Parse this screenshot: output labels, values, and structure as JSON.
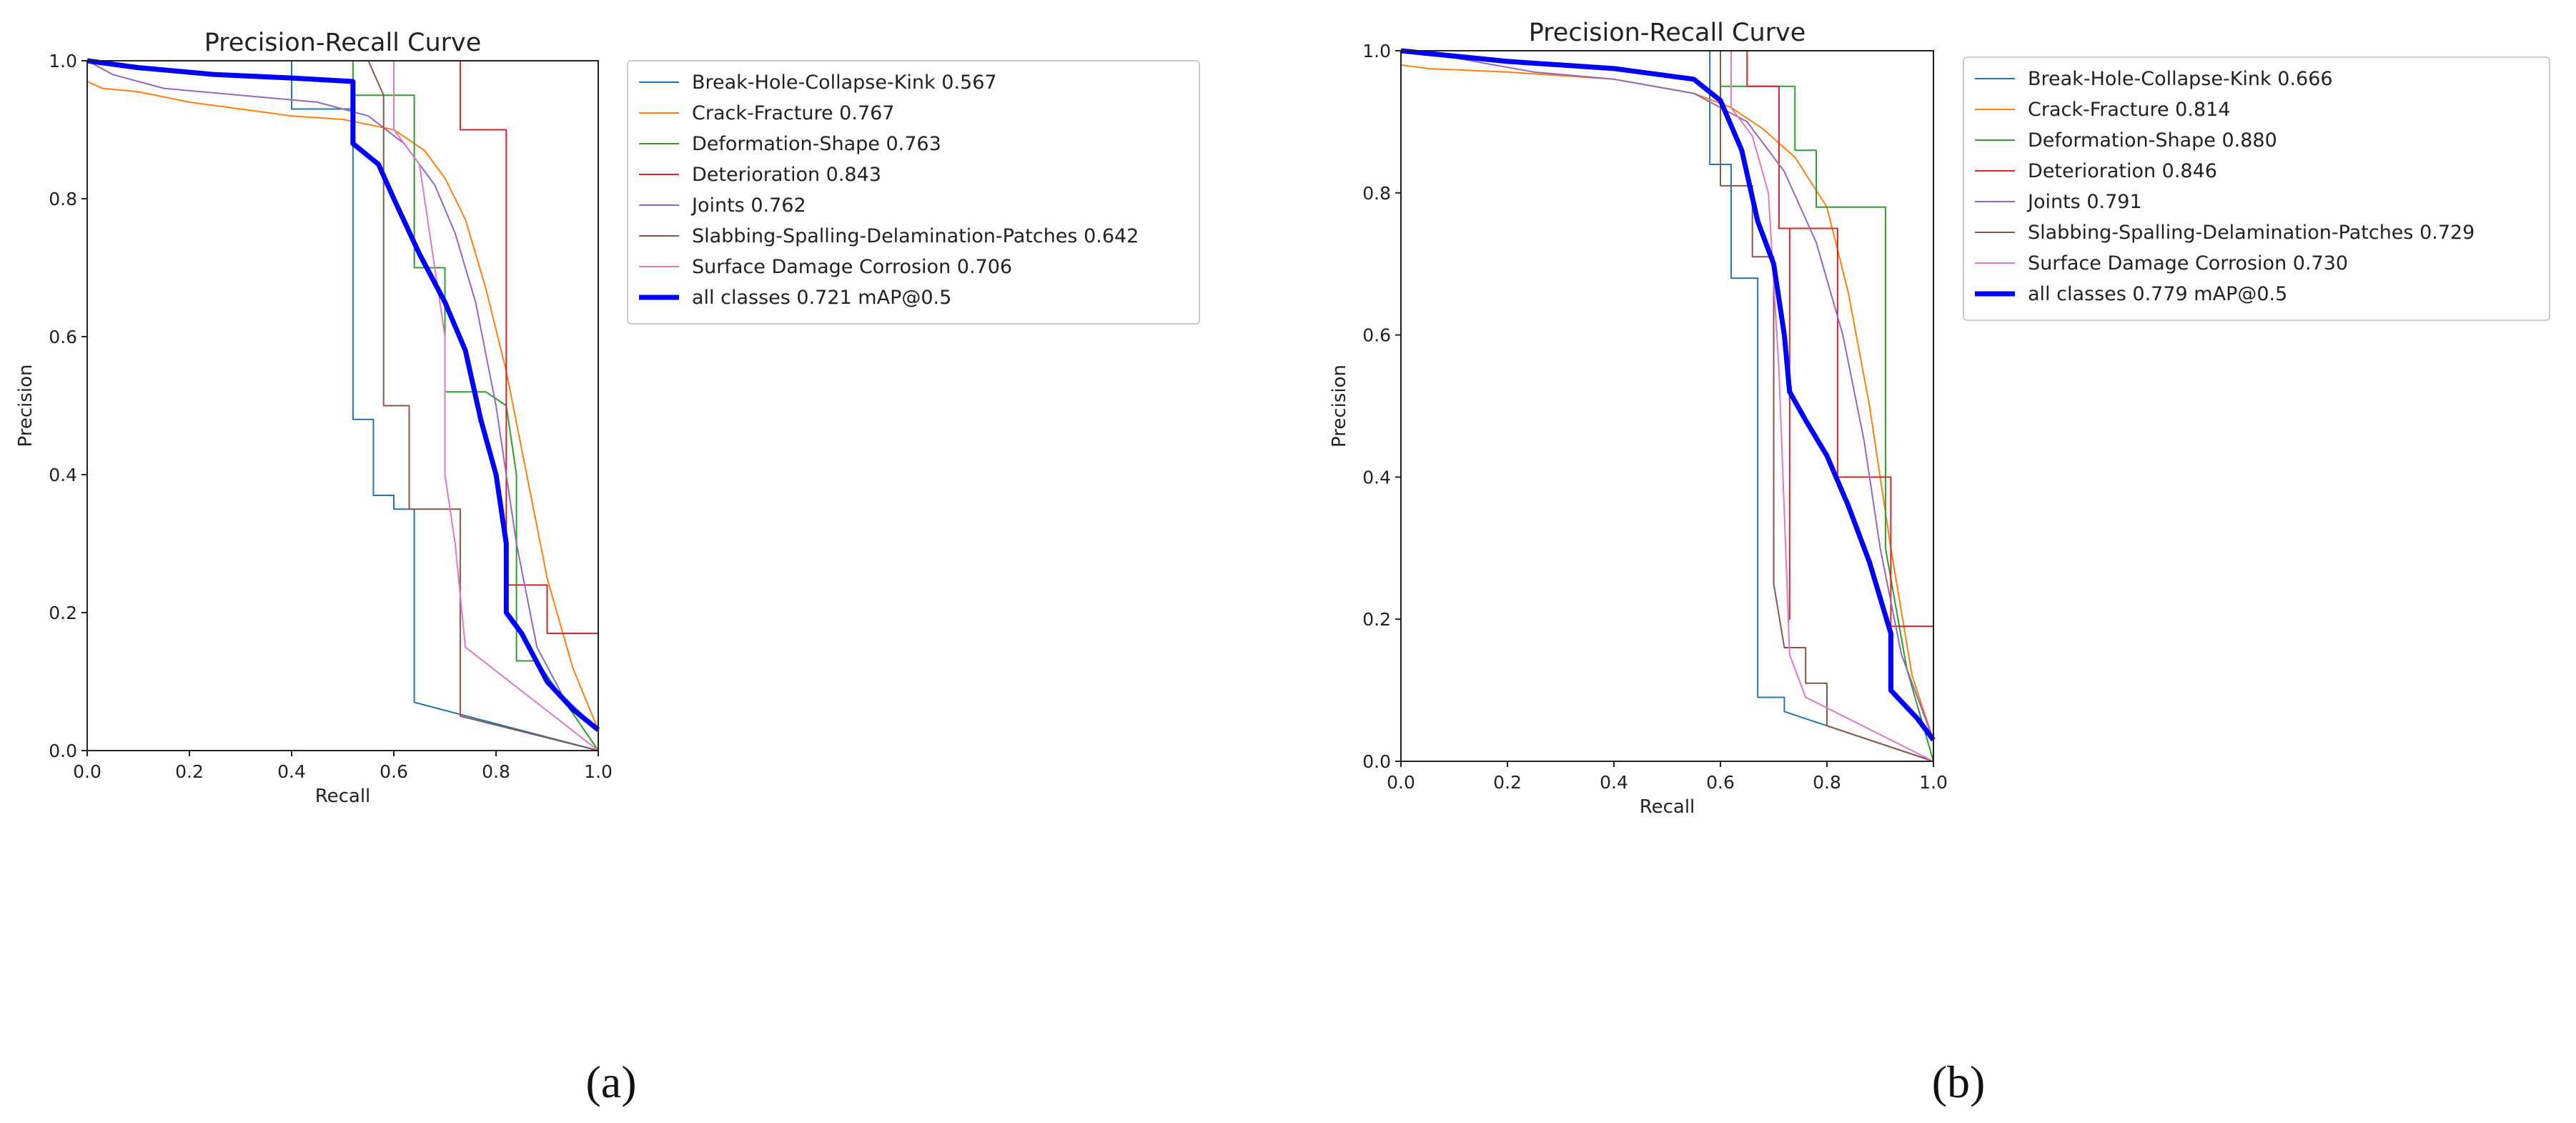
{
  "chart_data": [
    {
      "id": "a",
      "type": "line",
      "title": "Precision-Recall Curve",
      "xlabel": "Recall",
      "ylabel": "Precision",
      "xlim": [
        0,
        1
      ],
      "ylim": [
        0,
        1
      ],
      "xticks": [
        "0.0",
        "0.2",
        "0.4",
        "0.6",
        "0.8",
        "1.0"
      ],
      "yticks": [
        "0.0",
        "0.2",
        "0.4",
        "0.6",
        "0.8",
        "1.0"
      ],
      "legend_position": "outside-right",
      "caption": "(a)",
      "series": [
        {
          "name": "Break-Hole-Collapse-Kink 0.567",
          "color": "#1f77b4",
          "width": 2,
          "points": [
            [
              0,
              1
            ],
            [
              0.4,
              1
            ],
            [
              0.4,
              0.93
            ],
            [
              0.52,
              0.93
            ],
            [
              0.52,
              0.48
            ],
            [
              0.56,
              0.48
            ],
            [
              0.56,
              0.37
            ],
            [
              0.6,
              0.37
            ],
            [
              0.6,
              0.35
            ],
            [
              0.64,
              0.35
            ],
            [
              0.64,
              0.07
            ],
            [
              1,
              0
            ]
          ]
        },
        {
          "name": "Crack-Fracture 0.767",
          "color": "#ff7f0e",
          "width": 2,
          "points": [
            [
              0,
              0.97
            ],
            [
              0.03,
              0.96
            ],
            [
              0.1,
              0.955
            ],
            [
              0.2,
              0.94
            ],
            [
              0.3,
              0.93
            ],
            [
              0.4,
              0.92
            ],
            [
              0.5,
              0.915
            ],
            [
              0.6,
              0.9
            ],
            [
              0.66,
              0.87
            ],
            [
              0.7,
              0.83
            ],
            [
              0.74,
              0.77
            ],
            [
              0.78,
              0.67
            ],
            [
              0.82,
              0.55
            ],
            [
              0.86,
              0.4
            ],
            [
              0.9,
              0.25
            ],
            [
              0.95,
              0.12
            ],
            [
              1,
              0.03
            ]
          ]
        },
        {
          "name": "Deformation-Shape 0.763",
          "color": "#2ca02c",
          "width": 2,
          "points": [
            [
              0,
              1
            ],
            [
              0.52,
              1
            ],
            [
              0.52,
              0.95
            ],
            [
              0.64,
              0.95
            ],
            [
              0.64,
              0.7
            ],
            [
              0.7,
              0.7
            ],
            [
              0.7,
              0.52
            ],
            [
              0.78,
              0.52
            ],
            [
              0.82,
              0.5
            ],
            [
              0.84,
              0.4
            ],
            [
              0.84,
              0.13
            ],
            [
              0.88,
              0.13
            ],
            [
              1,
              0
            ]
          ]
        },
        {
          "name": "Deterioration 0.843",
          "color": "#d62728",
          "width": 2,
          "points": [
            [
              0,
              1
            ],
            [
              0.73,
              1
            ],
            [
              0.73,
              0.9
            ],
            [
              0.82,
              0.9
            ],
            [
              0.82,
              0.24
            ],
            [
              0.9,
              0.24
            ],
            [
              0.9,
              0.17
            ],
            [
              1,
              0.17
            ],
            [
              1,
              0
            ]
          ]
        },
        {
          "name": "Joints 0.762",
          "color": "#9467bd",
          "width": 2,
          "points": [
            [
              0,
              1
            ],
            [
              0.05,
              0.98
            ],
            [
              0.15,
              0.96
            ],
            [
              0.3,
              0.95
            ],
            [
              0.45,
              0.94
            ],
            [
              0.55,
              0.92
            ],
            [
              0.62,
              0.88
            ],
            [
              0.68,
              0.82
            ],
            [
              0.72,
              0.75
            ],
            [
              0.76,
              0.65
            ],
            [
              0.8,
              0.5
            ],
            [
              0.84,
              0.3
            ],
            [
              0.88,
              0.15
            ],
            [
              0.93,
              0.08
            ],
            [
              1,
              0.03
            ]
          ]
        },
        {
          "name": "Slabbing-Spalling-Delamination-Patches 0.642",
          "color": "#8c564b",
          "width": 2,
          "points": [
            [
              0,
              1
            ],
            [
              0.55,
              1
            ],
            [
              0.58,
              0.95
            ],
            [
              0.58,
              0.5
            ],
            [
              0.63,
              0.5
            ],
            [
              0.63,
              0.35
            ],
            [
              0.73,
              0.35
            ],
            [
              0.73,
              0.05
            ],
            [
              1,
              0
            ]
          ]
        },
        {
          "name": "Surface Damage Corrosion 0.706",
          "color": "#e377c2",
          "width": 2,
          "points": [
            [
              0,
              1
            ],
            [
              0.6,
              1
            ],
            [
              0.6,
              0.9
            ],
            [
              0.65,
              0.85
            ],
            [
              0.68,
              0.7
            ],
            [
              0.7,
              0.6
            ],
            [
              0.7,
              0.4
            ],
            [
              0.72,
              0.3
            ],
            [
              0.74,
              0.15
            ],
            [
              1,
              0
            ]
          ]
        },
        {
          "name": "all classes 0.721 mAP@0.5",
          "color": "#0000ff",
          "width": 7,
          "points": [
            [
              0,
              1
            ],
            [
              0.1,
              0.99
            ],
            [
              0.25,
              0.98
            ],
            [
              0.4,
              0.975
            ],
            [
              0.52,
              0.97
            ],
            [
              0.52,
              0.88
            ],
            [
              0.57,
              0.85
            ],
            [
              0.6,
              0.8
            ],
            [
              0.65,
              0.72
            ],
            [
              0.7,
              0.65
            ],
            [
              0.74,
              0.58
            ],
            [
              0.77,
              0.48
            ],
            [
              0.8,
              0.4
            ],
            [
              0.82,
              0.3
            ],
            [
              0.82,
              0.2
            ],
            [
              0.85,
              0.17
            ],
            [
              0.9,
              0.1
            ],
            [
              0.95,
              0.06
            ],
            [
              1,
              0.03
            ]
          ]
        }
      ]
    },
    {
      "id": "b",
      "type": "line",
      "title": "Precision-Recall Curve",
      "xlabel": "Recall",
      "ylabel": "Precision",
      "xlim": [
        0,
        1
      ],
      "ylim": [
        0,
        1
      ],
      "xticks": [
        "0.0",
        "0.2",
        "0.4",
        "0.6",
        "0.8",
        "1.0"
      ],
      "yticks": [
        "0.0",
        "0.2",
        "0.4",
        "0.6",
        "0.8",
        "1.0"
      ],
      "legend_position": "outside-right",
      "caption": "(b)",
      "series": [
        {
          "name": "Break-Hole-Collapse-Kink 0.666",
          "color": "#1f77b4",
          "width": 2,
          "points": [
            [
              0,
              1
            ],
            [
              0.58,
              1
            ],
            [
              0.58,
              0.84
            ],
            [
              0.62,
              0.84
            ],
            [
              0.62,
              0.68
            ],
            [
              0.67,
              0.68
            ],
            [
              0.67,
              0.09
            ],
            [
              0.72,
              0.09
            ],
            [
              0.72,
              0.07
            ],
            [
              1,
              0
            ]
          ]
        },
        {
          "name": "Crack-Fracture 0.814",
          "color": "#ff7f0e",
          "width": 2,
          "points": [
            [
              0,
              0.98
            ],
            [
              0.05,
              0.975
            ],
            [
              0.2,
              0.97
            ],
            [
              0.4,
              0.96
            ],
            [
              0.55,
              0.94
            ],
            [
              0.62,
              0.92
            ],
            [
              0.68,
              0.89
            ],
            [
              0.74,
              0.85
            ],
            [
              0.8,
              0.78
            ],
            [
              0.84,
              0.66
            ],
            [
              0.88,
              0.5
            ],
            [
              0.92,
              0.3
            ],
            [
              0.96,
              0.12
            ],
            [
              1,
              0.03
            ]
          ]
        },
        {
          "name": "Deformation-Shape 0.880",
          "color": "#2ca02c",
          "width": 2,
          "points": [
            [
              0,
              1
            ],
            [
              0.6,
              1
            ],
            [
              0.6,
              0.95
            ],
            [
              0.74,
              0.95
            ],
            [
              0.74,
              0.86
            ],
            [
              0.78,
              0.86
            ],
            [
              0.78,
              0.78
            ],
            [
              0.91,
              0.78
            ],
            [
              0.91,
              0.3
            ],
            [
              0.95,
              0.13
            ],
            [
              1,
              0
            ]
          ]
        },
        {
          "name": "Deterioration 0.846",
          "color": "#d62728",
          "width": 2,
          "points": [
            [
              0,
              1
            ],
            [
              0.65,
              1
            ],
            [
              0.65,
              0.95
            ],
            [
              0.71,
              0.95
            ],
            [
              0.71,
              0.75
            ],
            [
              0.73,
              0.75
            ],
            [
              0.73,
              0.2
            ],
            [
              0.73,
              0.75
            ],
            [
              0.82,
              0.75
            ],
            [
              0.82,
              0.4
            ],
            [
              0.92,
              0.4
            ],
            [
              0.92,
              0.19
            ],
            [
              1,
              0.19
            ],
            [
              1,
              0
            ]
          ]
        },
        {
          "name": "Joints 0.791",
          "color": "#9467bd",
          "width": 2,
          "points": [
            [
              0,
              1
            ],
            [
              0.1,
              0.99
            ],
            [
              0.25,
              0.97
            ],
            [
              0.4,
              0.96
            ],
            [
              0.55,
              0.94
            ],
            [
              0.65,
              0.9
            ],
            [
              0.72,
              0.83
            ],
            [
              0.78,
              0.73
            ],
            [
              0.83,
              0.6
            ],
            [
              0.87,
              0.45
            ],
            [
              0.9,
              0.3
            ],
            [
              0.94,
              0.15
            ],
            [
              1,
              0.03
            ]
          ]
        },
        {
          "name": "Slabbing-Spalling-Delamination-Patches 0.729",
          "color": "#8c564b",
          "width": 2,
          "points": [
            [
              0,
              1
            ],
            [
              0.6,
              1
            ],
            [
              0.6,
              0.81
            ],
            [
              0.66,
              0.81
            ],
            [
              0.66,
              0.71
            ],
            [
              0.7,
              0.71
            ],
            [
              0.7,
              0.25
            ],
            [
              0.72,
              0.16
            ],
            [
              0.76,
              0.16
            ],
            [
              0.76,
              0.11
            ],
            [
              0.8,
              0.11
            ],
            [
              0.8,
              0.05
            ],
            [
              1,
              0
            ]
          ]
        },
        {
          "name": "Surface Damage Corrosion 0.730",
          "color": "#e377c2",
          "width": 2,
          "points": [
            [
              0,
              1
            ],
            [
              0.62,
              1
            ],
            [
              0.62,
              0.92
            ],
            [
              0.66,
              0.88
            ],
            [
              0.69,
              0.8
            ],
            [
              0.71,
              0.55
            ],
            [
              0.72,
              0.35
            ],
            [
              0.73,
              0.15
            ],
            [
              0.76,
              0.09
            ],
            [
              1,
              0
            ]
          ]
        },
        {
          "name": "all classes 0.779 mAP@0.5",
          "color": "#0000ff",
          "width": 7,
          "points": [
            [
              0,
              1
            ],
            [
              0.2,
              0.985
            ],
            [
              0.4,
              0.975
            ],
            [
              0.55,
              0.96
            ],
            [
              0.6,
              0.93
            ],
            [
              0.64,
              0.86
            ],
            [
              0.67,
              0.76
            ],
            [
              0.7,
              0.7
            ],
            [
              0.72,
              0.6
            ],
            [
              0.73,
              0.52
            ],
            [
              0.76,
              0.48
            ],
            [
              0.8,
              0.43
            ],
            [
              0.84,
              0.36
            ],
            [
              0.88,
              0.28
            ],
            [
              0.92,
              0.18
            ],
            [
              0.92,
              0.1
            ],
            [
              0.97,
              0.06
            ],
            [
              1,
              0.03
            ]
          ]
        }
      ]
    }
  ]
}
